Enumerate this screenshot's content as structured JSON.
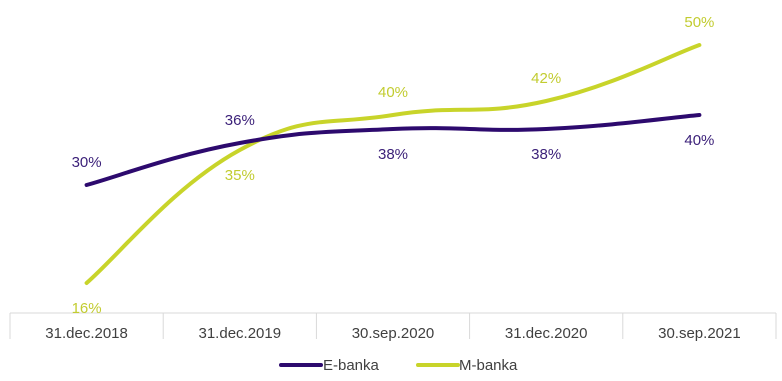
{
  "chart_data": {
    "type": "line",
    "categories": [
      "31.dec.2018",
      "31.dec.2019",
      "30.sep.2020",
      "31.dec.2020",
      "30.sep.2021"
    ],
    "series": [
      {
        "name": "E-banka",
        "values": [
          30,
          36,
          38,
          38,
          40
        ],
        "labels": [
          "30%",
          "36%",
          "38%",
          "38%",
          "40%"
        ],
        "color": "#2d0a6e",
        "label_color": "#3a1f78"
      },
      {
        "name": "M-banka",
        "values": [
          16,
          35,
          40,
          42,
          50
        ],
        "labels": [
          "16%",
          "35%",
          "40%",
          "42%",
          "50%"
        ],
        "color": "#c8d42a",
        "label_color": "#c2cc30"
      }
    ],
    "title": "",
    "xlabel": "",
    "ylabel": "",
    "grid": false,
    "legend": "bottom",
    "axis_color": "#d9d9d9",
    "text_color": "#404040"
  }
}
